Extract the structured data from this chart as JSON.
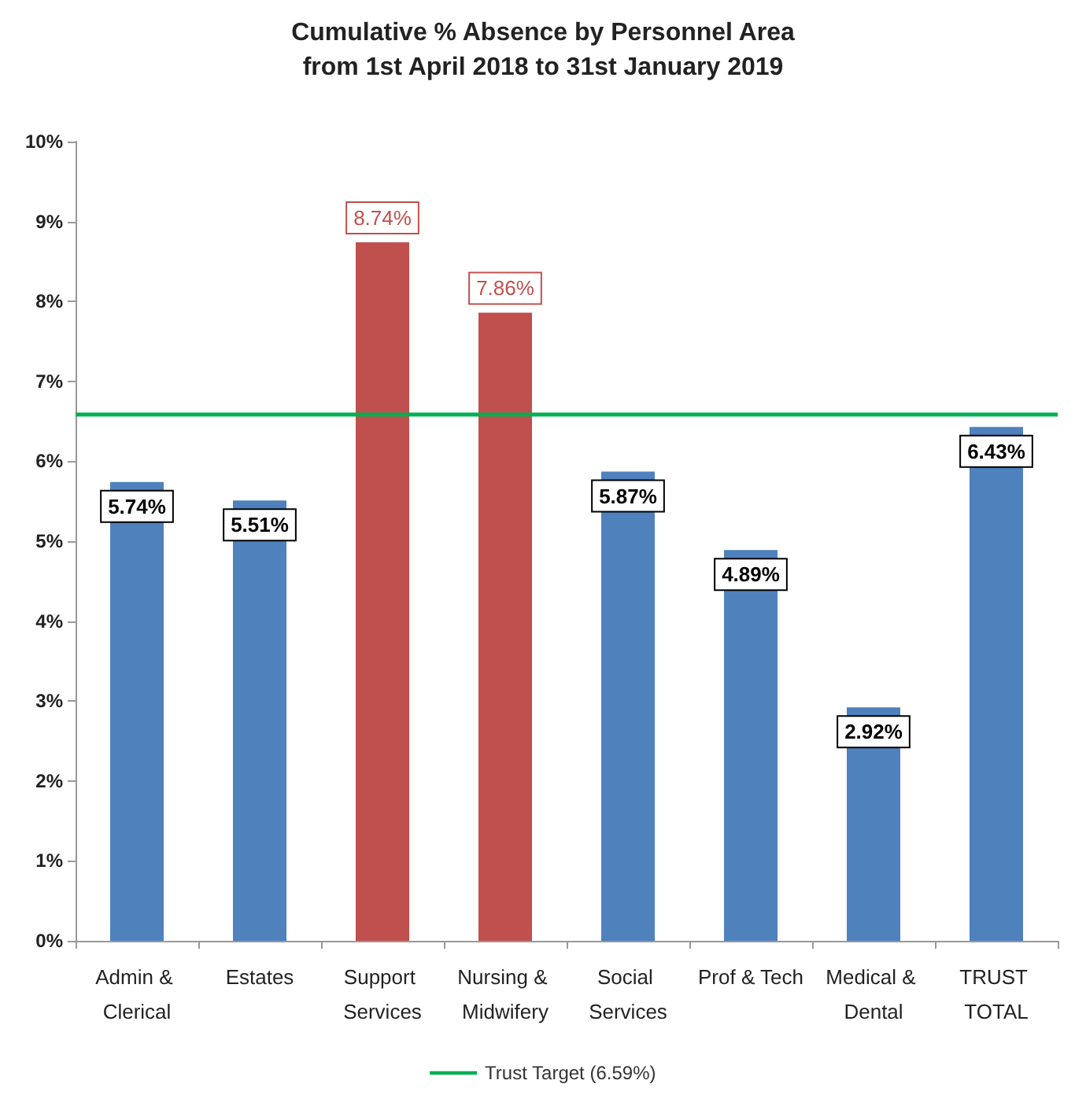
{
  "chart_data": {
    "type": "bar",
    "title": "Cumulative % Absence by Personnel Area",
    "subtitle": "from 1st April 2018 to 31st January 2019",
    "categories": [
      "Admin & Clerical",
      "Estates",
      "Support Services",
      "Nursing & Midwifery",
      "Social Services",
      "Prof & Tech",
      "Medical & Dental",
      "TRUST TOTAL"
    ],
    "values": [
      5.74,
      5.51,
      8.74,
      7.86,
      5.87,
      4.89,
      2.92,
      6.43
    ],
    "color": "#4f81bd",
    "colors": [
      "#4f81bd",
      "#4f81bd",
      "#c0504d",
      "#c0504d",
      "#4f81bd",
      "#4f81bd",
      "#4f81bd",
      "#4f81bd"
    ],
    "value_labels": [
      "5.74%",
      "5.51%",
      "8.74%",
      "7.86%",
      "5.87%",
      "4.89%",
      "2.92%",
      "6.43%"
    ],
    "ylim": [
      0,
      10
    ],
    "yticks": [
      {
        "value": 0,
        "label": "0%"
      },
      {
        "value": 1,
        "label": "1%"
      },
      {
        "value": 2,
        "label": "2%"
      },
      {
        "value": 3,
        "label": "3%"
      },
      {
        "value": 4,
        "label": "4%"
      },
      {
        "value": 5,
        "label": "5%"
      },
      {
        "value": 6,
        "label": "6%"
      },
      {
        "value": 7,
        "label": "7%"
      },
      {
        "value": 8,
        "label": "8%"
      },
      {
        "value": 9,
        "label": "9%"
      },
      {
        "value": 10,
        "label": "10%"
      }
    ],
    "ref_lines": [
      {
        "axis": "y",
        "value": 6.59,
        "label": "Trust Target (6.59%)",
        "color": "#00b050"
      }
    ],
    "legend": "bottom"
  }
}
